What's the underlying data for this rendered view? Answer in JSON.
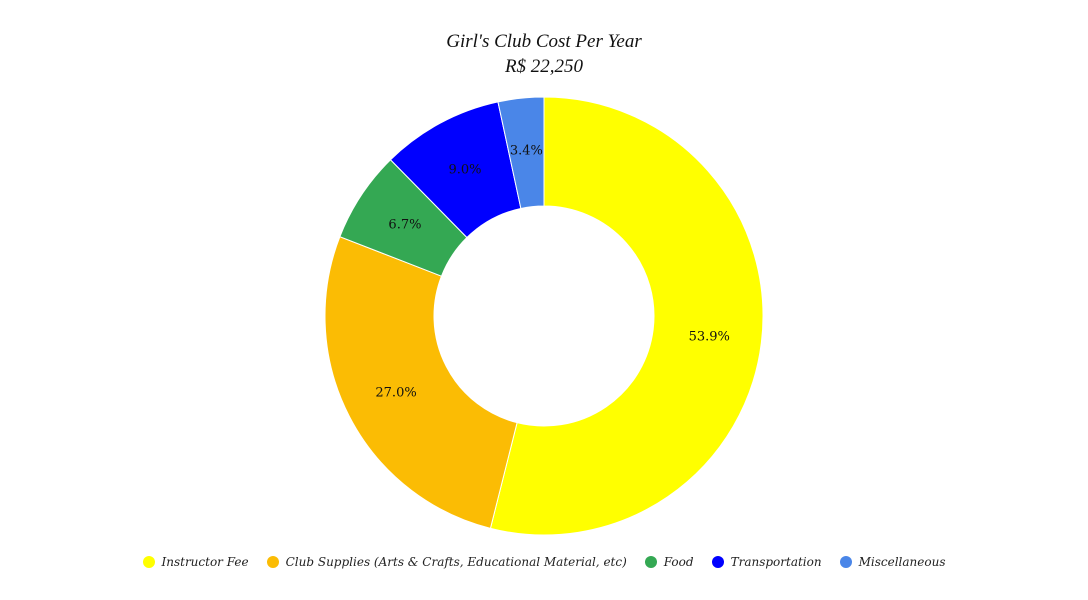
{
  "chart_data": {
    "type": "pie",
    "donut": true,
    "title": "Girl's Club Cost Per Year",
    "subtitle": "R$ 22,250",
    "legend_position": "bottom",
    "categories": [
      "Instructor Fee",
      "Club Supplies (Arts & Crafts, Educational Material, etc)",
      "Food",
      "Transportation",
      "Miscellaneous"
    ],
    "values": [
      12000,
      6000,
      1500,
      2000,
      750
    ],
    "labels": [
      "53.9%",
      "27.0%",
      "6.7%",
      "9.0%",
      "3.4%"
    ],
    "colors": [
      "#ffff00",
      "#fbbc04",
      "#34a853",
      "#0000ff",
      "#4a86e8"
    ]
  }
}
